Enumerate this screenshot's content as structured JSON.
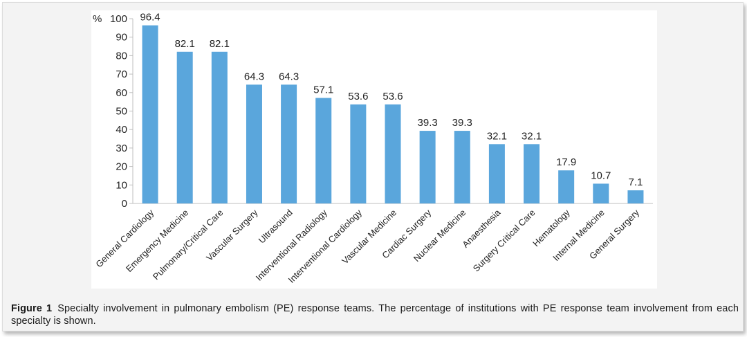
{
  "chart_data": {
    "type": "bar",
    "y_unit": "%",
    "ylim": [
      0,
      100
    ],
    "ytick_step": 10,
    "grid": false,
    "legend": "none",
    "bar_color": "#5aa6dc",
    "axis_color": "#bfbfbf",
    "categories": [
      "General Cardiology",
      "Emergency Medicine",
      "Pulmonary/Critical Care",
      "Vascular Surgery",
      "Ultrasound",
      "Interventional Radiology",
      "Interventional Cardiology",
      "Vascular Medicine",
      "Cardiac Surgery",
      "Nuclear Medicine",
      "Anaesthesia",
      "Surgery Critical Care",
      "Hematology",
      "Internal Medicine",
      "General Surgery"
    ],
    "values": [
      96.4,
      82.1,
      82.1,
      64.3,
      64.3,
      57.1,
      53.6,
      53.6,
      39.3,
      39.3,
      32.1,
      32.1,
      17.9,
      10.7,
      7.1
    ]
  },
  "caption": {
    "label": "Figure 1",
    "text": "Specialty involvement in pulmonary embolism (PE) response teams. The percentage of institutions with PE response team involvement from each specialty is shown."
  }
}
